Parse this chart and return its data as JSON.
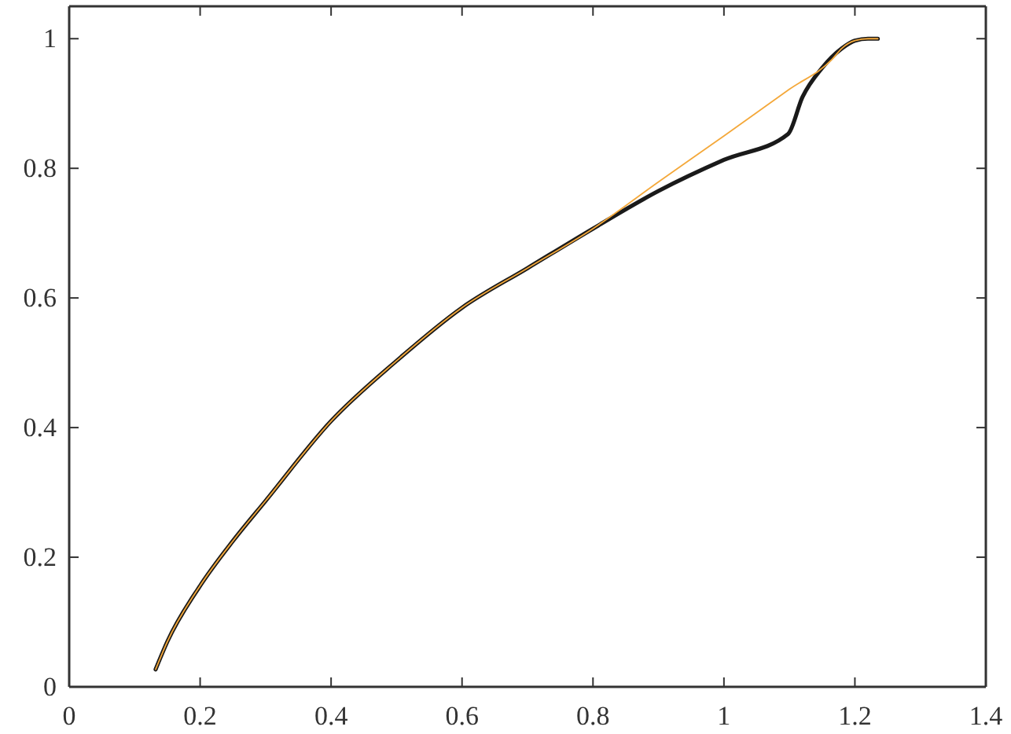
{
  "chart_data": {
    "type": "line",
    "xlim": [
      0,
      1.4
    ],
    "ylim": [
      0,
      1.05
    ],
    "xticks": [
      0,
      0.2,
      0.4,
      0.6,
      0.8,
      1,
      1.2,
      1.4
    ],
    "yticks": [
      0,
      0.2,
      0.4,
      0.6,
      0.8,
      1
    ],
    "grid": false,
    "marker": "none",
    "line_style": "solid",
    "series": [
      {
        "color": "#1a1a1a",
        "x": [
          0.132,
          0.15,
          0.2,
          0.25,
          0.3,
          0.4,
          0.5,
          0.6,
          0.7,
          0.8,
          0.9,
          1.0,
          1.098,
          1.12,
          1.15,
          1.18,
          1.2,
          1.22,
          1.235
        ],
        "values": [
          0.027,
          0.07,
          0.156,
          0.225,
          0.287,
          0.41,
          0.503,
          0.585,
          0.646,
          0.707,
          0.765,
          0.813,
          0.853,
          0.91,
          0.955,
          0.985,
          0.997,
          1.0,
          1.0
        ]
      },
      {
        "color": "#f4a83a",
        "x": [
          0.132,
          0.15,
          0.2,
          0.25,
          0.3,
          0.4,
          0.5,
          0.6,
          0.7,
          0.8,
          0.9,
          1.0,
          1.1,
          1.165,
          1.18,
          1.2,
          1.22,
          1.235
        ],
        "values": [
          0.027,
          0.07,
          0.156,
          0.225,
          0.287,
          0.41,
          0.503,
          0.585,
          0.646,
          0.707,
          0.779,
          0.85,
          0.922,
          0.968,
          0.985,
          0.997,
          1.0,
          1.0
        ]
      }
    ]
  }
}
